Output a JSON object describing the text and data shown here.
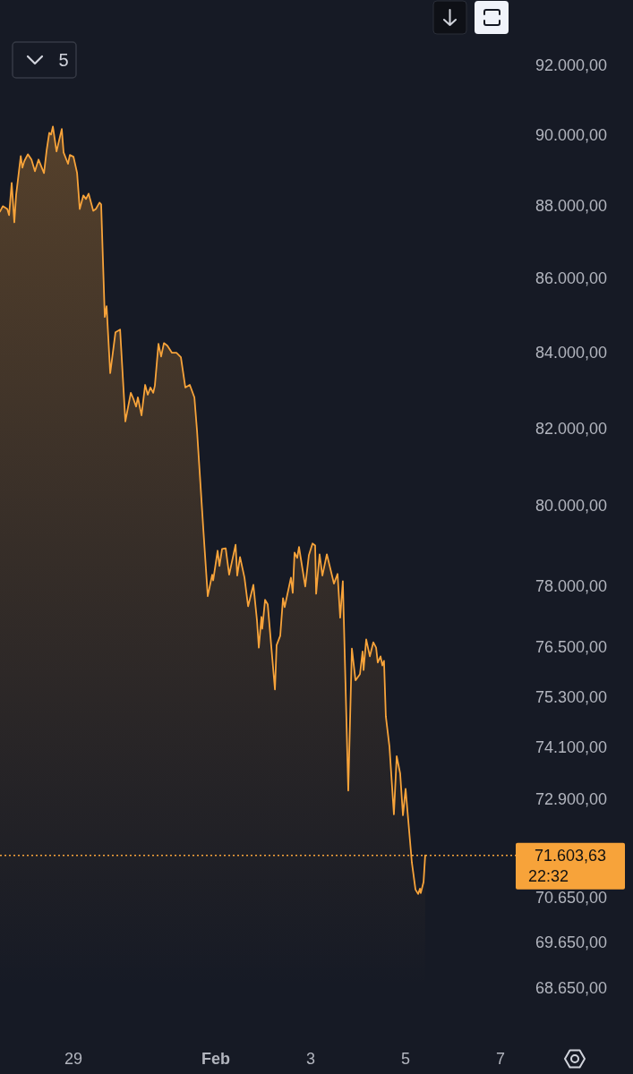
{
  "chart_data": {
    "type": "area",
    "annotations": [
      "5",
      "22:32"
    ],
    "log": "y",
    "grid": false,
    "xlim": [
      "--01-27T10:50",
      "--02-07T07:15"
    ],
    "xticks": [
      {
        "value": "--01-29",
        "label": "29"
      },
      {
        "value": "--02-01",
        "label": "Feb"
      },
      {
        "value": "--02-03",
        "label": "3"
      },
      {
        "value": "--02-05",
        "label": "5"
      },
      {
        "value": "--02-07",
        "label": "7"
      }
    ],
    "ylim": [
      68650,
      92000
    ],
    "yticks": [
      {
        "value": 92000,
        "label": "92.000,00"
      },
      {
        "value": 90000,
        "label": "90.000,00"
      },
      {
        "value": 88000,
        "label": "88.000,00"
      },
      {
        "value": 86000,
        "label": "86.000,00"
      },
      {
        "value": 84000,
        "label": "84.000,00"
      },
      {
        "value": 82000,
        "label": "82.000,00"
      },
      {
        "value": 80000,
        "label": "80.000,00"
      },
      {
        "value": 78000,
        "label": "78.000,00"
      },
      {
        "value": 76500,
        "label": "76.500,00"
      },
      {
        "value": 75300,
        "label": "75.300,00"
      },
      {
        "value": 74100,
        "label": "74.100,00"
      },
      {
        "value": 72900,
        "label": "72.900,00"
      },
      {
        "value": 70650,
        "label": "70.650,00"
      },
      {
        "value": 69650,
        "label": "69.650,00"
      },
      {
        "value": 68650,
        "label": "68.650,00"
      }
    ],
    "ref_lines": [
      {
        "axis": "y",
        "value": 71603.63,
        "label": "71.603,63",
        "color": "#f7a33a",
        "line_style": "dotted"
      }
    ],
    "x": [
      "--01-27T10:50",
      "--01-27T12:15",
      "--01-27T14:30",
      "--01-27T15:25",
      "--01-27T16:45",
      "--01-27T18:05",
      "--01-27T19:00",
      "--01-27T21:20",
      "--01-27T22:10",
      "--01-27T23:05",
      "--01-28T00:55",
      "--01-28T02:45",
      "--01-28T04:30",
      "--01-28T06:20",
      "--01-28T09:05",
      "--01-28T10:25",
      "--01-28T11:45",
      "--01-28T12:40",
      "--01-28T13:35",
      "--01-28T15:25",
      "--01-28T18:05",
      "--01-28T19:00",
      "--01-28T21:15",
      "--01-28T22:10",
      "--01-29T00:00",
      "--01-29T01:50",
      "--01-29T03:10",
      "--01-29T05:00",
      "--01-29T06:20",
      "--01-29T07:40",
      "--01-29T10:00",
      "--01-29T11:20",
      "--01-29T13:10",
      "--01-29T14:00",
      "--01-29T15:50",
      "--01-29T16:45",
      "--01-29T18:35",
      "--01-29T21:15",
      "--01-29T23:35",
      "--01-30T02:15",
      "--01-30T05:00",
      "--01-30T06:20",
      "--01-30T07:40",
      "--01-30T08:35",
      "--01-30T10:25",
      "--01-30T12:15",
      "--01-30T13:35",
      "--01-30T14:55",
      "--01-30T16:20",
      "--01-30T17:10",
      "--01-30T19:00",
      "--01-30T20:20",
      "--01-30T21:45",
      "--01-30T23:30",
      "--01-31T01:50",
      "--01-31T04:05",
      "--01-31T06:20",
      "--01-31T08:35",
      "--01-31T10:50",
      "--01-31T13:10",
      "--01-31T14:30",
      "--01-31T17:40",
      "--01-31T19:55",
      "--01-31T22:10",
      "--01-31T22:40",
      "--02-01T00:55",
      "--02-01T01:50",
      "--02-01T03:10",
      "--02-01T05:00",
      "--02-01T06:45",
      "--02-01T10:00",
      "--02-01T10:50",
      "--02-01T12:15",
      "--02-01T14:30",
      "--02-01T16:20",
      "--02-01T19:00",
      "--02-01T20:50",
      "--02-01T21:45",
      "--02-01T23:05",
      "--02-01T23:30",
      "--02-02T00:55",
      "--02-02T02:15",
      "--02-02T05:55",
      "--02-02T06:45",
      "--02-02T08:35",
      "--02-02T10:00",
      "--02-02T10:50",
      "--02-02T14:00",
      "--02-02T14:55",
      "--02-02T15:50",
      "--02-02T17:10",
      "--02-02T18:05",
      "--02-02T21:15",
      "--02-02T23:05",
      "--02-03T00:55",
      "--02-03T02:15",
      "--02-03T02:45",
      "--02-03T04:30",
      "--02-03T05:55",
      "--02-03T08:10",
      "--02-03T11:45",
      "--02-03T13:35",
      "--02-03T14:55",
      "--02-03T16:15",
      "--02-03T19:00",
      "--02-03T20:50",
      "--02-03T22:40",
      "--02-04T00:55",
      "--02-04T02:15",
      "--02-04T02:45",
      "--02-04T04:05",
      "--02-04T05:55",
      "--02-04T07:40",
      "--02-04T09:05",
      "--02-04T09:55",
      "--02-04T11:20",
      "--02-04T12:15",
      "--02-04T13:05",
      "--02-04T14:00",
      "--02-04T15:50",
      "--02-04T18:05",
      "--02-04T19:30",
      "--02-04T21:15",
      "--02-04T22:40",
      "--02-05T00:00",
      "--02-05T03:10",
      "--02-05T05:00",
      "--02-05T06:20",
      "--02-05T07:15",
      "--02-05T07:40",
      "--02-05T09:05",
      "--02-05T09:55"
    ],
    "series": [
      {
        "color": "#f7a33a",
        "values": [
          87830,
          87980,
          87900,
          87730,
          88630,
          87530,
          88300,
          89390,
          89060,
          89240,
          89440,
          89290,
          88960,
          89290,
          88910,
          89550,
          90050,
          90000,
          90230,
          89520,
          90160,
          89490,
          89170,
          89420,
          89370,
          88910,
          87900,
          88280,
          88180,
          88330,
          87850,
          87900,
          88080,
          88030,
          84940,
          85230,
          83440,
          84530,
          84600,
          82170,
          82920,
          82760,
          82560,
          82800,
          82330,
          83130,
          82870,
          83060,
          82920,
          83110,
          84220,
          83880,
          84240,
          84170,
          83980,
          83980,
          83860,
          83060,
          83130,
          82800,
          81930,
          79420,
          77740,
          78270,
          78130,
          78870,
          78490,
          78910,
          78930,
          78270,
          79020,
          78250,
          78710,
          78200,
          77490,
          78020,
          77140,
          76480,
          77230,
          76940,
          77650,
          77540,
          75470,
          76540,
          76770,
          77690,
          77470,
          78200,
          77820,
          78820,
          78690,
          78960,
          77980,
          78760,
          79050,
          79000,
          77800,
          78780,
          78250,
          78780,
          78050,
          78290,
          77210,
          78110,
          73090,
          76460,
          75690,
          75840,
          76390,
          75940,
          76680,
          76270,
          76610,
          76480,
          76120,
          76270,
          76050,
          76160,
          74830,
          74120,
          72540,
          73890,
          73490,
          72520,
          73130,
          71440,
          70830,
          70730,
          70850,
          70750,
          71000,
          71603.63
        ]
      }
    ]
  }
}
